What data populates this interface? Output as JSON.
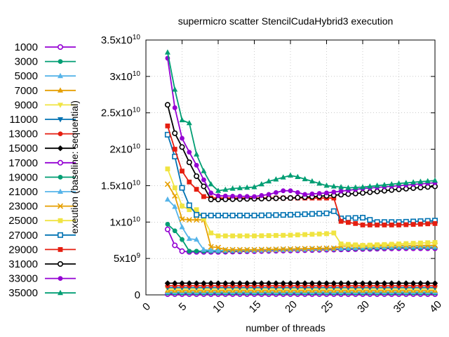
{
  "chart_data": {
    "type": "line",
    "title": "supermicro scatter StencilCudaHybrid3 execution",
    "xlabel": "number of threads",
    "ylabel": "exeution (baseline: sequential)",
    "xlim": [
      0,
      40
    ],
    "ylim": [
      0,
      35000000000
    ],
    "xticks": [
      0,
      5,
      10,
      15,
      20,
      25,
      30,
      35,
      40
    ],
    "xtick_labels": [
      "0",
      "5",
      "10",
      "15",
      "20",
      "25",
      "30",
      "35",
      "40"
    ],
    "yticks": [
      0,
      5000000000,
      10000000000,
      15000000000,
      20000000000,
      25000000000,
      30000000000,
      35000000000
    ],
    "ytick_labels": [
      {
        "base": "0",
        "exp": ""
      },
      {
        "base": "5x10",
        "exp": "9"
      },
      {
        "base": "1x10",
        "exp": "10"
      },
      {
        "base": "1.5x10",
        "exp": "10"
      },
      {
        "base": "2x10",
        "exp": "10"
      },
      {
        "base": "2.5x10",
        "exp": "10"
      },
      {
        "base": "3x10",
        "exp": "10"
      },
      {
        "base": "3.5x10",
        "exp": "10"
      }
    ],
    "grid": true,
    "legend_position": "left",
    "series": [
      {
        "name": "1000",
        "color": "#9400d3",
        "marker": "circle-open",
        "x": [
          3,
          40
        ],
        "y": [
          100000000,
          100000000
        ]
      },
      {
        "name": "3000",
        "color": "#009e73",
        "marker": "circle-filled",
        "x": [
          3,
          40
        ],
        "y": [
          250000000,
          250000000
        ]
      },
      {
        "name": "5000",
        "color": "#56b4e9",
        "marker": "triangle-filled",
        "x": [
          3,
          40
        ],
        "y": [
          400000000,
          400000000
        ]
      },
      {
        "name": "7000",
        "color": "#e69f00",
        "marker": "triangle-filled",
        "x": [
          3,
          40
        ],
        "y": [
          600000000,
          600000000
        ]
      },
      {
        "name": "9000",
        "color": "#f0e442",
        "marker": "triangle-down-filled",
        "x": [
          3,
          40
        ],
        "y": [
          800000000,
          800000000
        ]
      },
      {
        "name": "11000",
        "color": "#0072b2",
        "marker": "triangle-down-filled",
        "x": [
          3,
          40
        ],
        "y": [
          1000000000,
          1000000000
        ]
      },
      {
        "name": "13000",
        "color": "#e51e10",
        "marker": "circle-filled",
        "x": [
          3,
          40
        ],
        "y": [
          1250000000,
          1250000000
        ]
      },
      {
        "name": "15000",
        "color": "#000000",
        "marker": "diamond-filled",
        "x": [
          3,
          40
        ],
        "y": [
          1600000000,
          1600000000
        ]
      },
      {
        "name": "17000",
        "color": "#9400d3",
        "marker": "circle-open",
        "x": [
          3,
          4,
          5,
          6,
          7,
          8,
          9,
          10,
          15,
          20,
          25,
          30,
          35,
          40
        ],
        "y": [
          9000000000,
          6800000000,
          6000000000,
          5900000000,
          5900000000,
          5900000000,
          5900000000,
          5900000000,
          6000000000,
          6100000000,
          6200000000,
          6300000000,
          6400000000,
          6400000000
        ]
      },
      {
        "name": "19000",
        "color": "#009e73",
        "marker": "circle-filled",
        "x": [
          3,
          4,
          5,
          6,
          7,
          8,
          9,
          10,
          15,
          20,
          25,
          30,
          35,
          40
        ],
        "y": [
          9700000000,
          8800000000,
          7600000000,
          6000000000,
          6000000000,
          6000000000,
          6000000000,
          6000000000,
          6100000000,
          6200000000,
          6300000000,
          6400000000,
          6500000000,
          6500000000
        ]
      },
      {
        "name": "21000",
        "color": "#56b4e9",
        "marker": "triangle-filled",
        "x": [
          3,
          4,
          5,
          6,
          7,
          8,
          9,
          10,
          15,
          20,
          25,
          30,
          35,
          40
        ],
        "y": [
          13100000000,
          12100000000,
          9300000000,
          7700000000,
          7600000000,
          6200000000,
          6100000000,
          6100000000,
          6100000000,
          6200000000,
          6300000000,
          6500000000,
          6600000000,
          6600000000
        ]
      },
      {
        "name": "23000",
        "color": "#e69f00",
        "marker": "cross",
        "x": [
          3,
          4,
          5,
          6,
          7,
          8,
          9,
          10,
          11,
          15,
          20,
          25,
          26,
          27,
          30,
          35,
          40
        ],
        "y": [
          15200000000,
          13600000000,
          10400000000,
          10300000000,
          10300000000,
          10300000000,
          6600000000,
          6500000000,
          6200000000,
          6200000000,
          6300000000,
          6400000000,
          6400000000,
          6700000000,
          6700000000,
          6800000000,
          6800000000
        ]
      },
      {
        "name": "25000",
        "color": "#f0e442",
        "marker": "square-filled",
        "x": [
          3,
          4,
          5,
          6,
          7,
          8,
          9,
          10,
          15,
          20,
          25,
          26,
          27,
          30,
          35,
          40
        ],
        "y": [
          17300000000,
          14700000000,
          12200000000,
          11700000000,
          11700000000,
          10500000000,
          8500000000,
          8100000000,
          8100000000,
          8200000000,
          8400000000,
          8500000000,
          7000000000,
          6800000000,
          7000000000,
          7200000000
        ]
      },
      {
        "name": "27000",
        "color": "#0072b2",
        "marker": "square-open",
        "x": [
          3,
          4,
          5,
          6,
          7,
          8,
          9,
          10,
          15,
          20,
          25,
          26,
          27,
          30,
          32,
          35,
          40
        ],
        "y": [
          22000000000,
          19000000000,
          14700000000,
          12300000000,
          11000000000,
          10900000000,
          10900000000,
          10900000000,
          10900000000,
          11000000000,
          11200000000,
          11500000000,
          10500000000,
          10600000000,
          10000000000,
          10000000000,
          10200000000
        ]
      },
      {
        "name": "29000",
        "color": "#e51e10",
        "marker": "square-filled",
        "x": [
          3,
          4,
          5,
          6,
          7,
          8,
          9,
          10,
          15,
          20,
          25,
          26,
          27,
          29,
          30,
          35,
          40
        ],
        "y": [
          23200000000,
          20000000000,
          17000000000,
          15500000000,
          14500000000,
          13500000000,
          13300000000,
          13300000000,
          13300000000,
          13300000000,
          13300000000,
          13300000000,
          10100000000,
          9800000000,
          9600000000,
          9600000000,
          9800000000
        ]
      },
      {
        "name": "31000",
        "color": "#000000",
        "marker": "circle-open",
        "x": [
          3,
          4,
          5,
          6,
          7,
          8,
          9,
          10,
          15,
          20,
          25,
          30,
          35,
          40
        ],
        "y": [
          26100000000,
          22200000000,
          20300000000,
          18200000000,
          16300000000,
          14900000000,
          13100000000,
          13100000000,
          13200000000,
          13300000000,
          13600000000,
          14000000000,
          14500000000,
          14900000000
        ]
      },
      {
        "name": "33000",
        "color": "#9400d3",
        "marker": "circle-filled",
        "x": [
          3,
          4,
          5,
          6,
          7,
          8,
          9,
          10,
          15,
          17,
          19,
          20,
          22,
          25,
          30,
          35,
          40
        ],
        "y": [
          32500000000,
          25700000000,
          21500000000,
          19600000000,
          17800000000,
          15800000000,
          14000000000,
          13600000000,
          13500000000,
          13800000000,
          14300000000,
          14300000000,
          13800000000,
          14000000000,
          14600000000,
          15000000000,
          15400000000
        ]
      },
      {
        "name": "35000",
        "color": "#009e73",
        "marker": "triangle-filled",
        "x": [
          3,
          4,
          5,
          6,
          7,
          8,
          9,
          10,
          12,
          15,
          17,
          20,
          21,
          25,
          28,
          30,
          35,
          40
        ],
        "y": [
          33300000000,
          28200000000,
          24000000000,
          23600000000,
          19300000000,
          17000000000,
          15200000000,
          14300000000,
          14600000000,
          14800000000,
          15600000000,
          16400000000,
          16200000000,
          15000000000,
          14700000000,
          14800000000,
          15300000000,
          15700000000
        ]
      }
    ]
  }
}
